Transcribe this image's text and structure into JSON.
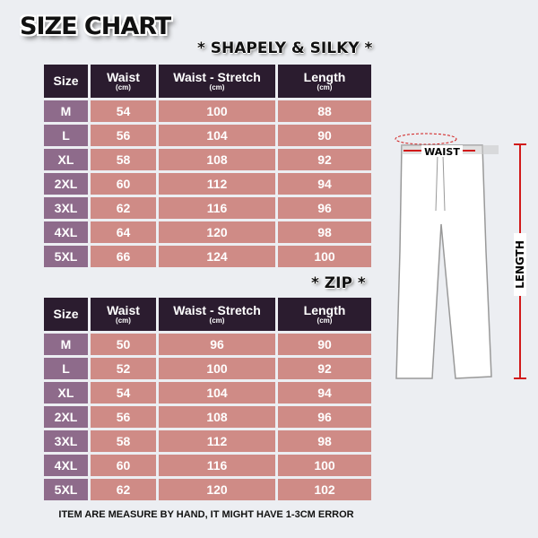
{
  "title": "SIZE CHART",
  "columns": [
    {
      "label": "Size",
      "unit": ""
    },
    {
      "label": "Waist",
      "unit": "(cm)"
    },
    {
      "label": "Waist - Stretch",
      "unit": "(cm)"
    },
    {
      "label": "Length",
      "unit": "(cm)"
    }
  ],
  "tables": [
    {
      "name": "* SHAPELY & SILKY *",
      "rows": [
        [
          "M",
          "54",
          "100",
          "88"
        ],
        [
          "L",
          "56",
          "104",
          "90"
        ],
        [
          "XL",
          "58",
          "108",
          "92"
        ],
        [
          "2XL",
          "60",
          "112",
          "94"
        ],
        [
          "3XL",
          "62",
          "116",
          "96"
        ],
        [
          "4XL",
          "64",
          "120",
          "98"
        ],
        [
          "5XL",
          "66",
          "124",
          "100"
        ]
      ]
    },
    {
      "name": "* ZIP *",
      "rows": [
        [
          "M",
          "50",
          "96",
          "90"
        ],
        [
          "L",
          "52",
          "100",
          "92"
        ],
        [
          "XL",
          "54",
          "104",
          "94"
        ],
        [
          "2XL",
          "56",
          "108",
          "96"
        ],
        [
          "3XL",
          "58",
          "112",
          "98"
        ],
        [
          "4XL",
          "60",
          "116",
          "100"
        ],
        [
          "5XL",
          "62",
          "120",
          "102"
        ]
      ]
    }
  ],
  "diagram": {
    "waist_label": "WAIST",
    "length_label": "LENGTH"
  },
  "footer": "ITEM ARE MEASURE BY HAND, IT MIGHT HAVE 1-3CM ERROR",
  "colors": {
    "header": "#2b1c2f",
    "size_cell": "#8e6b8b",
    "value_cell": "#cf8b86",
    "measure_line": "#d11a1a"
  }
}
